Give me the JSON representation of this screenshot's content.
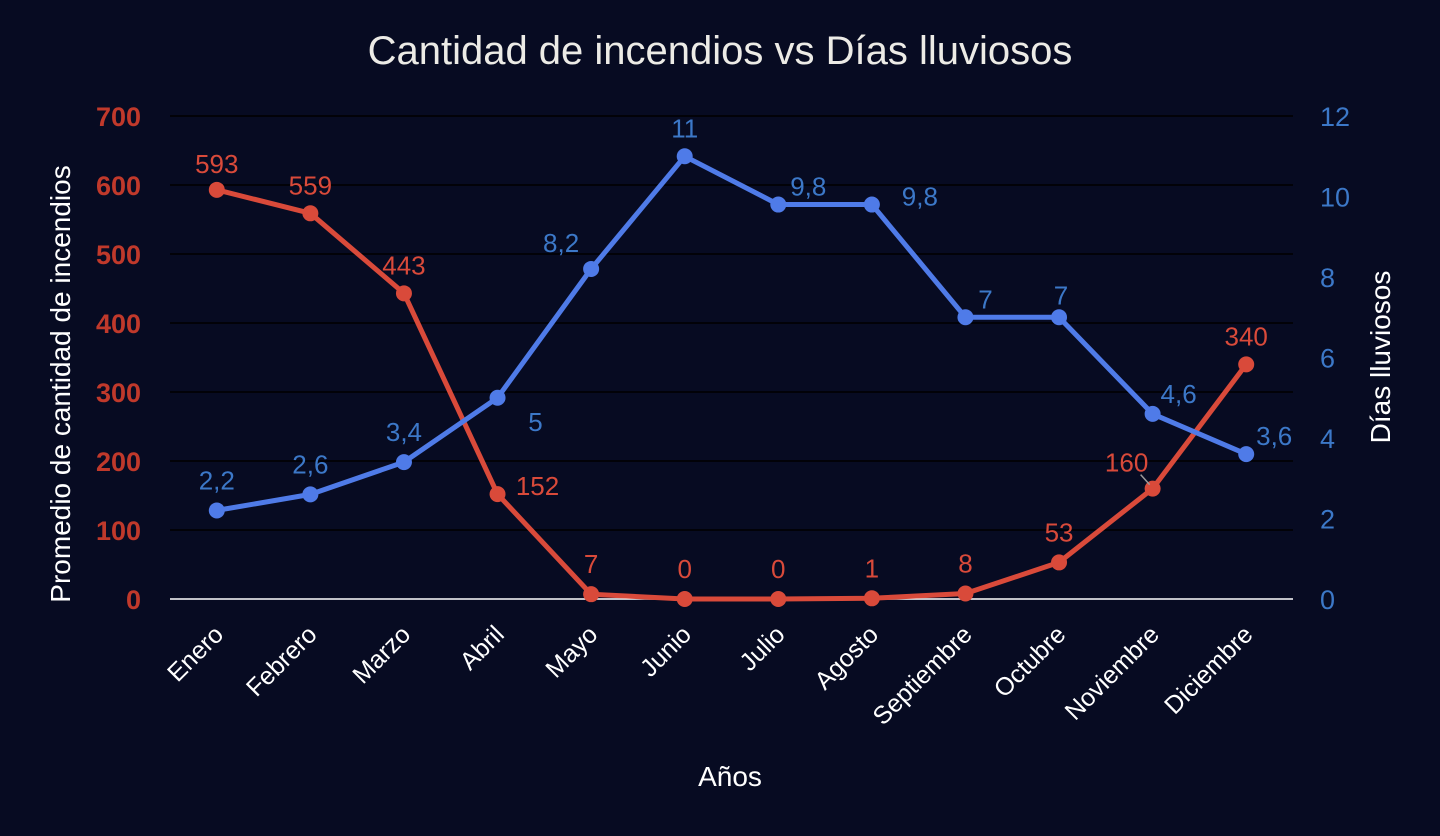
{
  "chart_data": {
    "type": "line",
    "title": "Cantidad de incendios vs Días lluviosos",
    "xlabel": "Años",
    "ylabel": "Promedio de cantidad de incendios",
    "y2label": "Días lluviosos",
    "categories": [
      "Enero",
      "Febrero",
      "Marzo",
      "Abril",
      "Mayo",
      "Junio",
      "Julio",
      "Agosto",
      "Septiembre",
      "Octubre",
      "Noviembre",
      "Diciembre"
    ],
    "ylim": [
      0,
      700
    ],
    "y2lim": [
      0,
      12
    ],
    "yticks": [
      "0",
      "100",
      "200",
      "300",
      "400",
      "500",
      "600",
      "700"
    ],
    "y2ticks": [
      "0",
      "2",
      "4",
      "6",
      "8",
      "10",
      "12"
    ],
    "grid": true,
    "legend": "none",
    "series": [
      {
        "axis": "left",
        "color": "#d94a3a",
        "values": [
          593,
          559,
          443,
          152,
          7,
          0,
          0,
          1,
          8,
          53,
          160,
          340
        ],
        "labels": [
          "593",
          "559",
          "443",
          "152",
          "7",
          "0",
          "0",
          "1",
          "8",
          "53",
          "160",
          "340"
        ]
      },
      {
        "axis": "right",
        "color": "#4f7be8",
        "values": [
          2.2,
          2.6,
          3.4,
          5,
          8.2,
          11,
          9.8,
          9.8,
          7,
          7,
          4.6,
          3.6
        ],
        "labels": [
          "2,2",
          "2,6",
          "3,4",
          "5",
          "8,2",
          "11",
          "9,8",
          "9,8",
          "7",
          "7",
          "4,6",
          "3,6"
        ]
      }
    ],
    "colors": {
      "background": "#070b22",
      "left_axis_text": "#c0392b",
      "right_axis_text": "#3c78c8",
      "fire_label": "#d94a3a",
      "rain_label": "#3c78c8",
      "text": "#ffffff",
      "title": "#ecebe6"
    }
  }
}
